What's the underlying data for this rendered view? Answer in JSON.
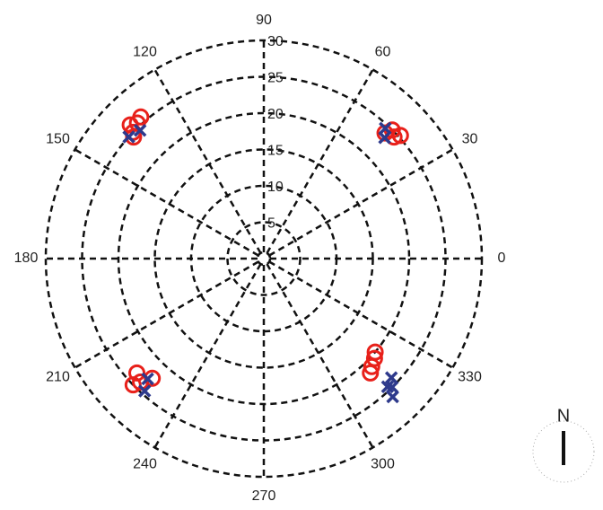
{
  "chart_data": {
    "type": "polar-scatter",
    "rlim": [
      0,
      30
    ],
    "rticks": [
      5,
      10,
      15,
      20,
      25,
      30
    ],
    "thetaticks": [
      0,
      30,
      60,
      90,
      120,
      150,
      180,
      210,
      240,
      270,
      300,
      330
    ],
    "grid": true,
    "series": [
      {
        "color": "#e8201a",
        "marker": "circle",
        "theta": [
          135,
          133,
          136,
          131,
          137,
          45,
          43,
          46,
          42,
          225,
          222,
          227,
          224,
          315,
          318,
          313,
          320
        ],
        "r": [
          26,
          25.5,
          25,
          25.8,
          24.5,
          25,
          24.5,
          24,
          25.3,
          24,
          23.5,
          22.5,
          25,
          21,
          20.5,
          21.5,
          20
        ]
      },
      {
        "color": "#2e3a8c",
        "marker": "x",
        "theta": [
          134,
          138,
          45,
          47,
          226,
          228,
          315,
          313,
          317,
          314
        ],
        "r": [
          24.5,
          25,
          23.5,
          24.5,
          23,
          24.5,
          25,
          26,
          24,
          24.5
        ]
      }
    ],
    "annotations": [
      "N"
    ]
  }
}
